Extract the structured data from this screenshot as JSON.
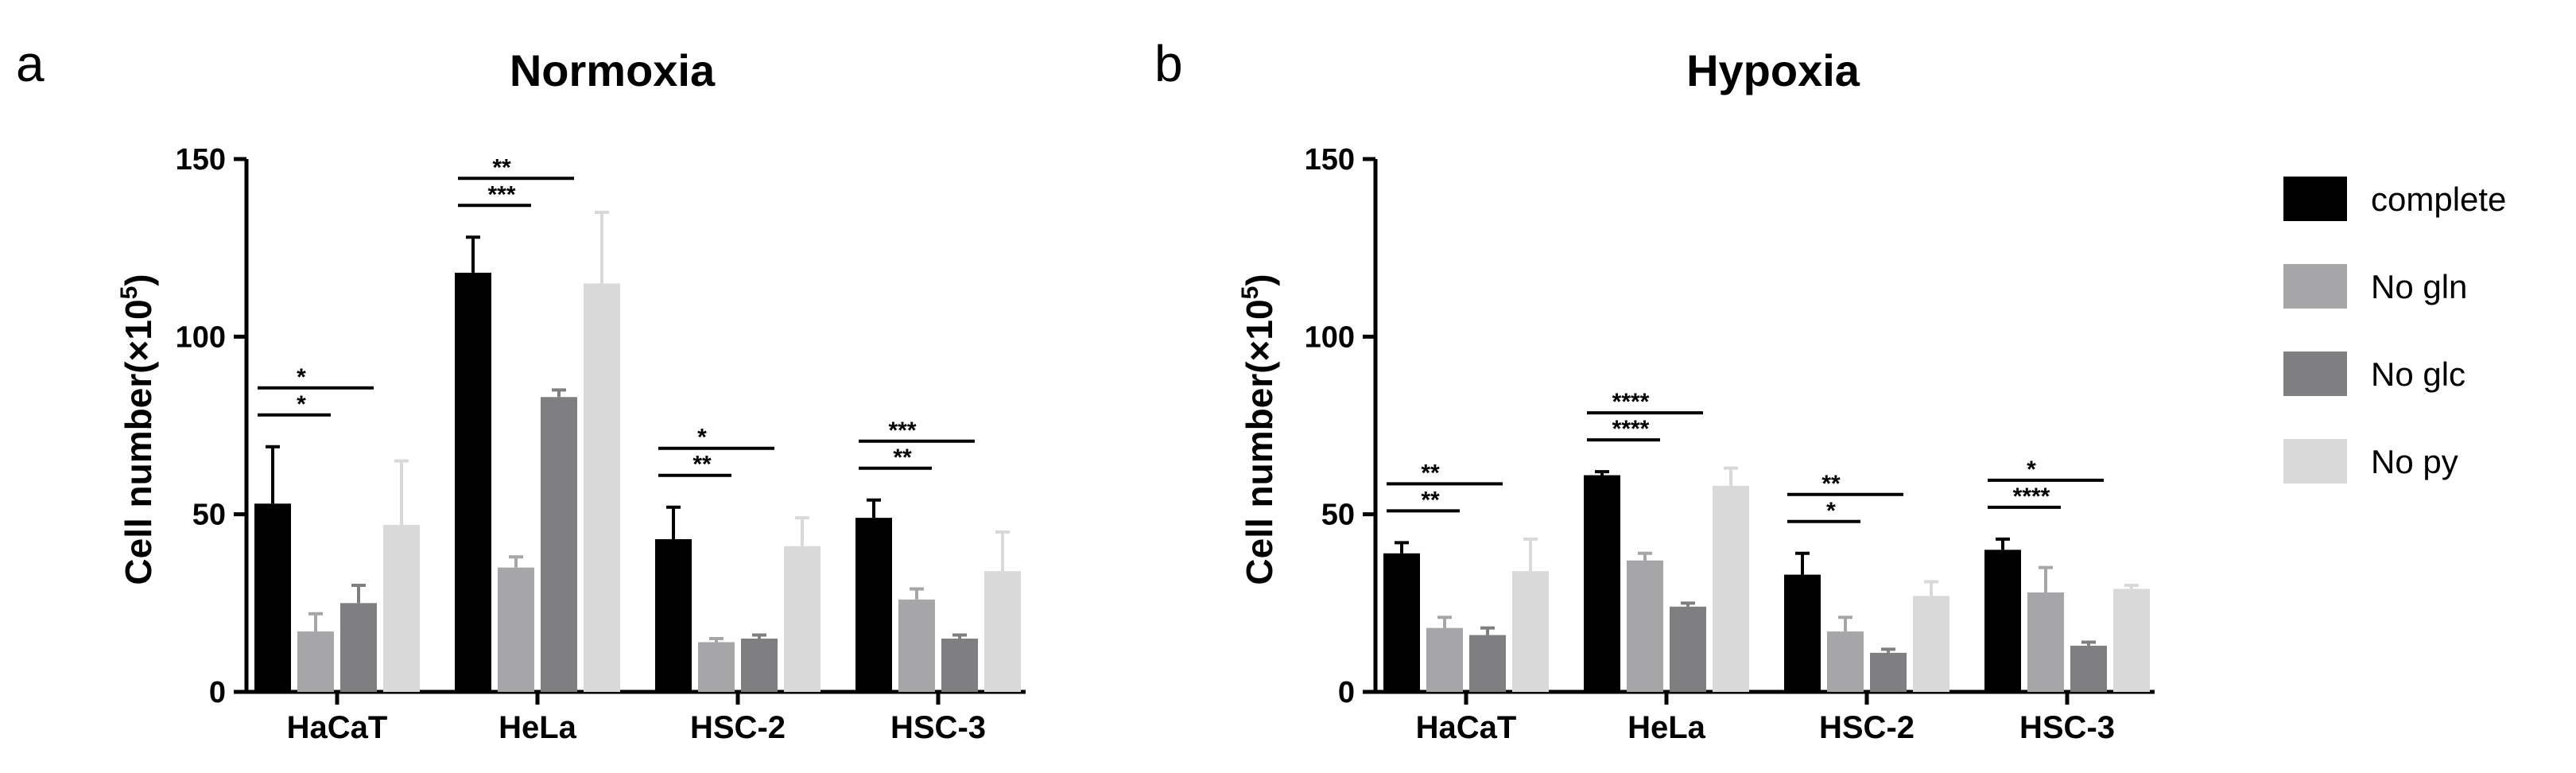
{
  "figure": {
    "ylabel_main": "Cell number(×10",
    "ylabel_sup": "5",
    "ylabel_close": ")"
  },
  "colors": {
    "complete": "#000000",
    "No gln": "#a6a6a8",
    "No glc": "#7f7f81",
    "No py": "#d9d9d9"
  },
  "legend": {
    "placement": "right",
    "items": [
      "complete",
      "No gln",
      "No glc",
      "No py"
    ]
  },
  "chart_data": [
    {
      "type": "bar",
      "panel": "a",
      "title": "Normoxia",
      "ylabel": "Cell number(×10^5)",
      "ylim": [
        0,
        150
      ],
      "yticks": [
        0,
        50,
        100,
        150
      ],
      "categories": [
        "HaCaT",
        "HeLa",
        "HSC-2",
        "HSC-3"
      ],
      "series": [
        {
          "name": "complete",
          "values": [
            53,
            118,
            43,
            49
          ],
          "errors": [
            16,
            10,
            9,
            5
          ]
        },
        {
          "name": "No gln",
          "values": [
            17,
            35,
            14,
            26
          ],
          "errors": [
            5,
            3,
            1,
            3
          ]
        },
        {
          "name": "No glc",
          "values": [
            25,
            83,
            15,
            15
          ],
          "errors": [
            5,
            2,
            1,
            1
          ]
        },
        {
          "name": "No py",
          "values": [
            47,
            115,
            41,
            34
          ],
          "errors": [
            18,
            20,
            8,
            11
          ]
        }
      ],
      "significance": [
        {
          "category": 0,
          "from": 0,
          "to": 1,
          "label": "*"
        },
        {
          "category": 0,
          "from": 0,
          "to": 2,
          "label": "*"
        },
        {
          "category": 1,
          "from": 0,
          "to": 1,
          "label": "***"
        },
        {
          "category": 1,
          "from": 0,
          "to": 2,
          "label": "**"
        },
        {
          "category": 2,
          "from": 0,
          "to": 1,
          "label": "**"
        },
        {
          "category": 2,
          "from": 0,
          "to": 2,
          "label": "*"
        },
        {
          "category": 3,
          "from": 0,
          "to": 1,
          "label": "**"
        },
        {
          "category": 3,
          "from": 0,
          "to": 2,
          "label": "***"
        }
      ]
    },
    {
      "type": "bar",
      "panel": "b",
      "title": "Hypoxia",
      "ylabel": "Cell number(×10^5)",
      "ylim": [
        0,
        150
      ],
      "yticks": [
        0,
        50,
        100,
        150
      ],
      "categories": [
        "HaCaT",
        "HeLa",
        "HSC-2",
        "HSC-3"
      ],
      "series": [
        {
          "name": "complete",
          "values": [
            39,
            61,
            33,
            40
          ],
          "errors": [
            3,
            1,
            6,
            3
          ]
        },
        {
          "name": "No gln",
          "values": [
            18,
            37,
            17,
            28
          ],
          "errors": [
            3,
            2,
            4,
            7
          ]
        },
        {
          "name": "No glc",
          "values": [
            16,
            24,
            11,
            13
          ],
          "errors": [
            2,
            1,
            1,
            1
          ]
        },
        {
          "name": "No py",
          "values": [
            34,
            58,
            27,
            29
          ],
          "errors": [
            9,
            5,
            4,
            1
          ]
        }
      ],
      "significance": [
        {
          "category": 0,
          "from": 0,
          "to": 1,
          "label": "**"
        },
        {
          "category": 0,
          "from": 0,
          "to": 2,
          "label": "**"
        },
        {
          "category": 1,
          "from": 0,
          "to": 1,
          "label": "****"
        },
        {
          "category": 1,
          "from": 0,
          "to": 2,
          "label": "****"
        },
        {
          "category": 2,
          "from": 0,
          "to": 1,
          "label": "*"
        },
        {
          "category": 2,
          "from": 0,
          "to": 2,
          "label": "**"
        },
        {
          "category": 3,
          "from": 0,
          "to": 1,
          "label": "****"
        },
        {
          "category": 3,
          "from": 0,
          "to": 2,
          "label": "*"
        }
      ]
    }
  ]
}
